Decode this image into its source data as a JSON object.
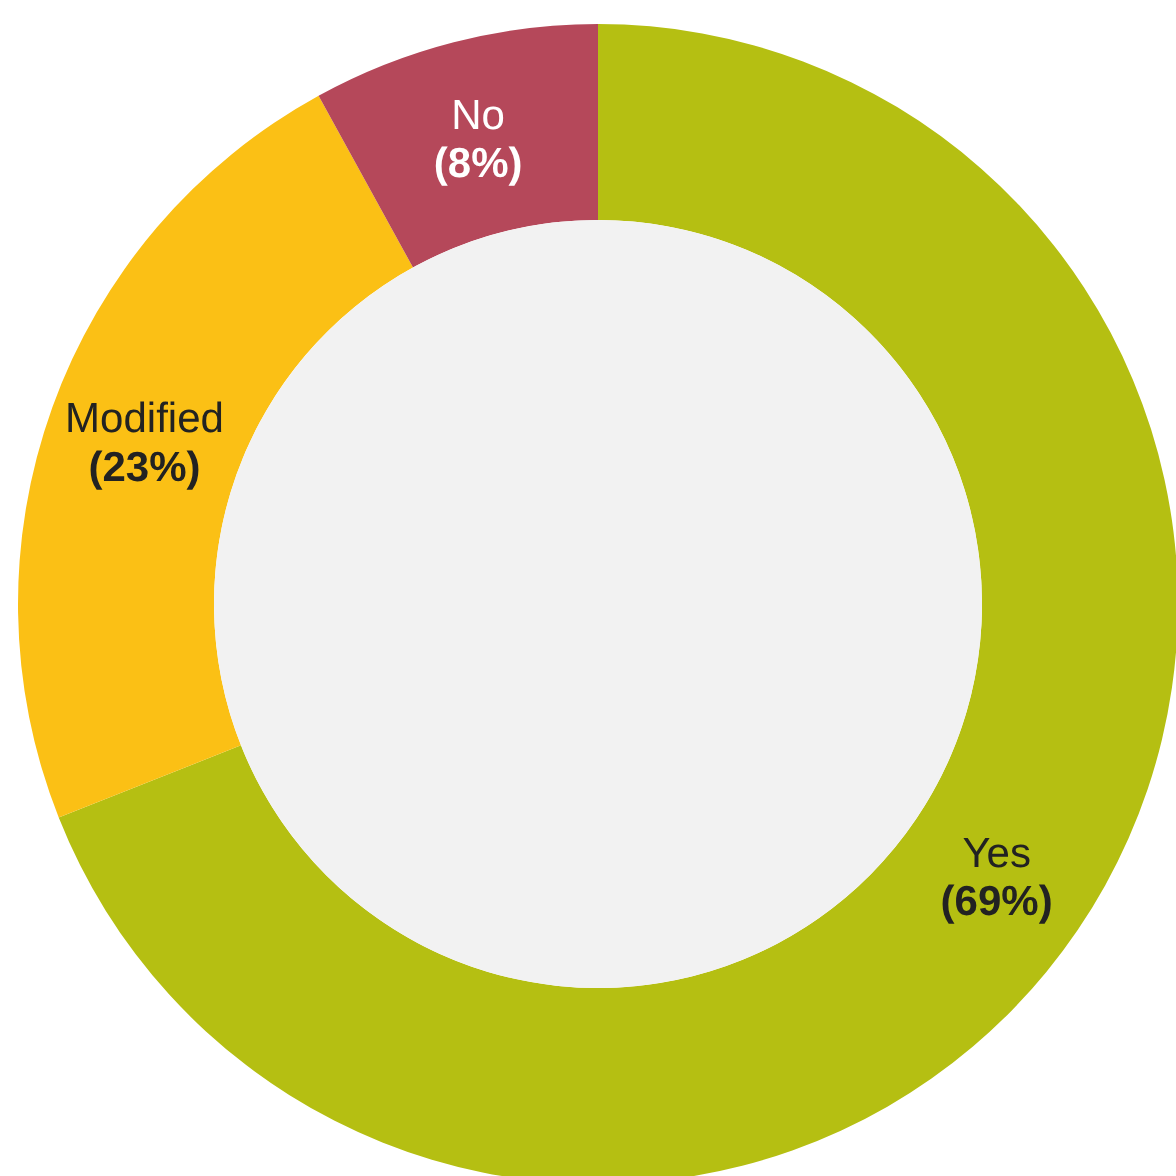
{
  "chart_data": {
    "type": "donut",
    "categories": [
      "Yes",
      "Modified",
      "No"
    ],
    "values": [
      69,
      23,
      8
    ],
    "colors": [
      "#b5bf12",
      "#fbc015",
      "#b5485a"
    ],
    "value_labels": [
      "(69%)",
      "(23%)",
      "(8%)"
    ]
  }
}
